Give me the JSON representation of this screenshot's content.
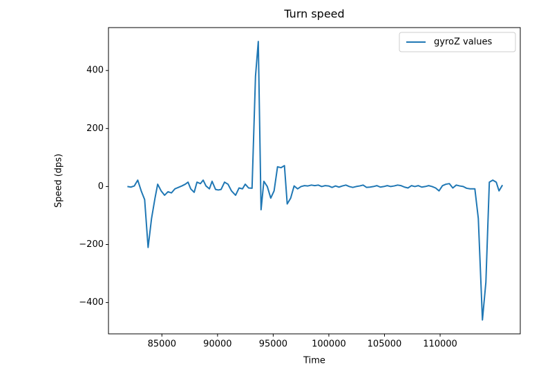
{
  "chart_data": {
    "type": "line",
    "title": "Turn speed",
    "x_label": "Time",
    "y_label": "Speed (dps)",
    "x": [
      81900,
      82210,
      82520,
      82830,
      83140,
      83450,
      83760,
      84070,
      84380,
      84620,
      84930,
      85240,
      85550,
      85860,
      86170,
      86480,
      86790,
      87100,
      87350,
      87590,
      87900,
      88150,
      88460,
      88710,
      88960,
      89270,
      89510,
      89820,
      90070,
      90320,
      90630,
      90940,
      91250,
      91620,
      91930,
      92240,
      92490,
      92790,
      93100,
      93410,
      93660,
      93910,
      94160,
      94470,
      94780,
      95080,
      95390,
      95700,
      96010,
      96260,
      96570,
      96880,
      97190,
      97500,
      97810,
      98120,
      98430,
      98740,
      99050,
      99360,
      99670,
      99980,
      100290,
      100600,
      100910,
      101220,
      101530,
      101840,
      102150,
      102460,
      102770,
      103080,
      103390,
      103700,
      104010,
      104320,
      104630,
      104940,
      105250,
      105560,
      105870,
      106180,
      106490,
      106800,
      107110,
      107420,
      107730,
      108040,
      108350,
      108660,
      108970,
      109280,
      109590,
      109900,
      110210,
      110520,
      110830,
      111140,
      111450,
      111760,
      112070,
      112380,
      112690,
      113120,
      113430,
      113800,
      114110,
      114420,
      114730,
      115040,
      115290,
      115600
    ],
    "series": [
      {
        "name": "gyroZ values",
        "color": "#1f77b4",
        "values": [
          0,
          -2,
          2,
          22,
          -15,
          -45,
          -210,
          -110,
          -40,
          8,
          -15,
          -30,
          -18,
          -22,
          -8,
          -3,
          2,
          8,
          15,
          -8,
          -20,
          15,
          10,
          22,
          2,
          -8,
          18,
          -10,
          -12,
          -10,
          15,
          8,
          -15,
          -30,
          -5,
          -8,
          8,
          -5,
          -6,
          380,
          500,
          -80,
          18,
          0,
          -40,
          -15,
          68,
          65,
          72,
          -60,
          -40,
          2,
          -8,
          0,
          3,
          2,
          5,
          3,
          5,
          0,
          3,
          2,
          -3,
          2,
          -2,
          2,
          5,
          0,
          -3,
          0,
          2,
          5,
          -3,
          -2,
          0,
          3,
          -2,
          0,
          3,
          0,
          2,
          5,
          3,
          -2,
          -5,
          3,
          0,
          3,
          -2,
          0,
          3,
          0,
          -5,
          -15,
          3,
          8,
          10,
          -5,
          5,
          2,
          0,
          -6,
          -8,
          -8,
          -110,
          -460,
          -330,
          15,
          22,
          15,
          -15,
          5
        ]
      }
    ],
    "xlim": [
      80200,
      117200
    ],
    "ylim": [
      -508,
      548
    ],
    "xticks": [
      85000,
      90000,
      95000,
      100000,
      105000,
      110000
    ],
    "yticks": [
      {
        "value": -400,
        "label": "−400"
      },
      {
        "value": -200,
        "label": "−200"
      },
      0,
      200,
      400
    ],
    "legend": "upper right"
  }
}
